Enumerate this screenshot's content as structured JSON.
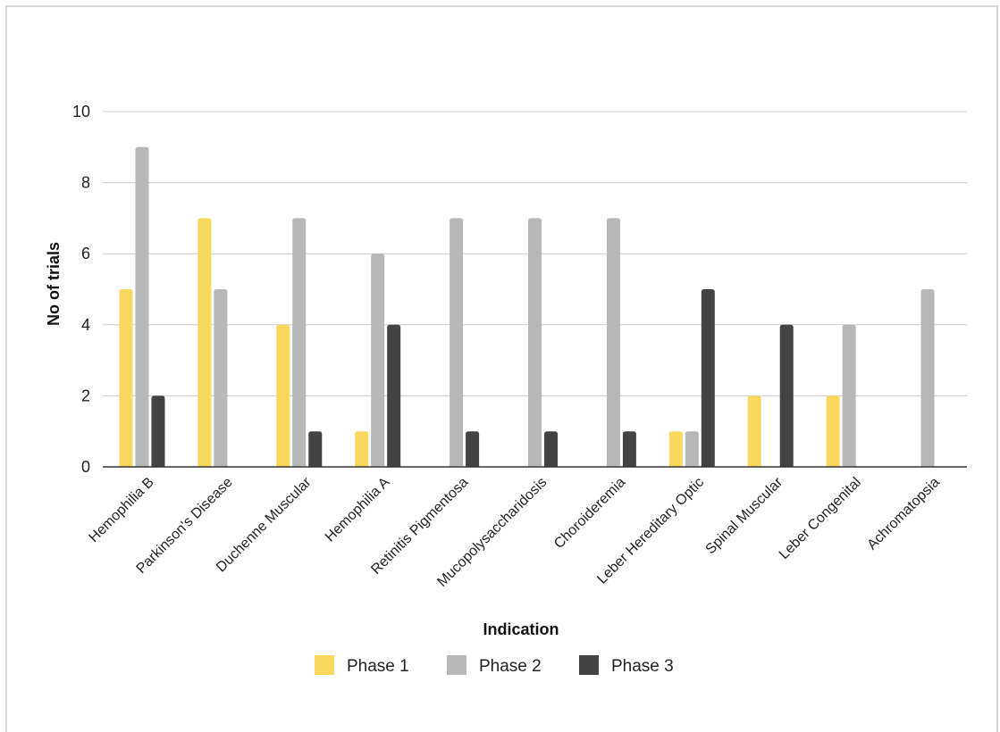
{
  "chart_data": {
    "type": "bar",
    "title": "",
    "xlabel": "Indication",
    "ylabel": "No of trials",
    "ylim": [
      0,
      10
    ],
    "yticks": [
      0,
      2,
      4,
      6,
      8,
      10
    ],
    "grid": true,
    "legend_position": "bottom",
    "categories": [
      "Hemophilia B",
      "Parkinson's Disease",
      "Duchenne Muscular",
      "Hemophilia A",
      "Retinitis Pigmentosa",
      "Mucopolysaccharidosis",
      "Choroideremia",
      "Leber Hereditary Optic",
      "Spinal Muscular",
      "Leber Congenital",
      "Achromatopsia"
    ],
    "series": [
      {
        "name": "Phase 1",
        "color": "#f9d85e",
        "values": [
          5,
          7,
          4,
          1,
          0,
          0,
          0,
          1,
          2,
          2,
          0
        ]
      },
      {
        "name": "Phase 2",
        "color": "#b7b7b7",
        "values": [
          9,
          5,
          7,
          6,
          7,
          7,
          7,
          1,
          0,
          4,
          5
        ]
      },
      {
        "name": "Phase 3",
        "color": "#434343",
        "values": [
          2,
          0,
          1,
          4,
          1,
          1,
          1,
          5,
          4,
          0,
          0
        ]
      }
    ]
  }
}
